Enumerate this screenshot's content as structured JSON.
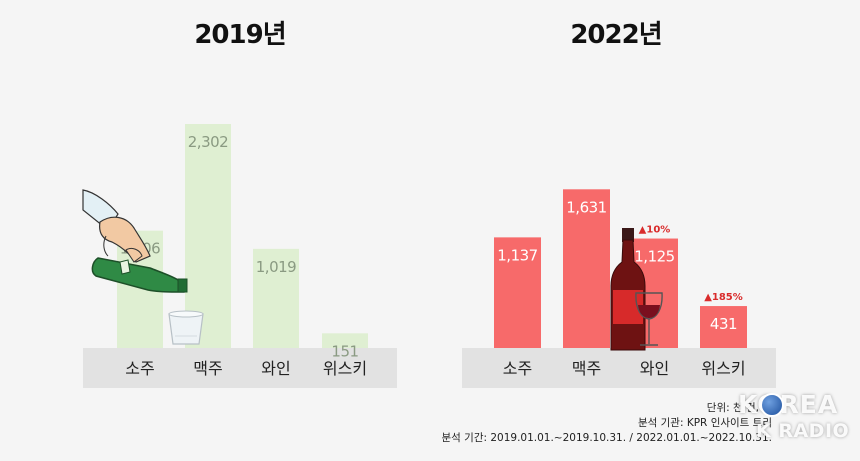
{
  "chart_data": [
    {
      "type": "bar",
      "title": "2019년",
      "categories": [
        "소주",
        "맥주",
        "와인",
        "위스키"
      ],
      "values": [
        1206,
        2302,
        1019,
        151
      ],
      "value_labels": [
        "1,206",
        "2,302",
        "1,019",
        "151"
      ],
      "bar_color": "#dfefd2",
      "label_color": "#8a9a82"
    },
    {
      "type": "bar",
      "title": "2022년",
      "categories": [
        "소주",
        "맥주",
        "와인",
        "위스키"
      ],
      "values": [
        1137,
        1631,
        1125,
        431
      ],
      "value_labels": [
        "1,137",
        "1,631",
        "1,125",
        "431"
      ],
      "bar_color": "#f76a6a",
      "label_color": "#ffffff",
      "annotations": [
        {
          "category": "와인",
          "text": "▲10%"
        },
        {
          "category": "위스키",
          "text": "▲185%"
        }
      ],
      "annotation_color": "#d92b2b"
    }
  ],
  "footnotes": {
    "unit": "단위: 천 건, 동",
    "source": "분석 기관: KPR 인사이트 트리",
    "period": "분석 기간: 2019.01.01.~2019.10.31. / 2022.01.01.~2022.10.31."
  },
  "logo": {
    "line1": "KOREA",
    "line2": "K RADIO"
  },
  "colors": {
    "axis_band": "#e2e2e2",
    "background": "#f5f5f5"
  },
  "icons": [
    "hand-pouring-soju-icon",
    "glass-icon",
    "wine-bottle-icon",
    "wine-glass-icon"
  ]
}
